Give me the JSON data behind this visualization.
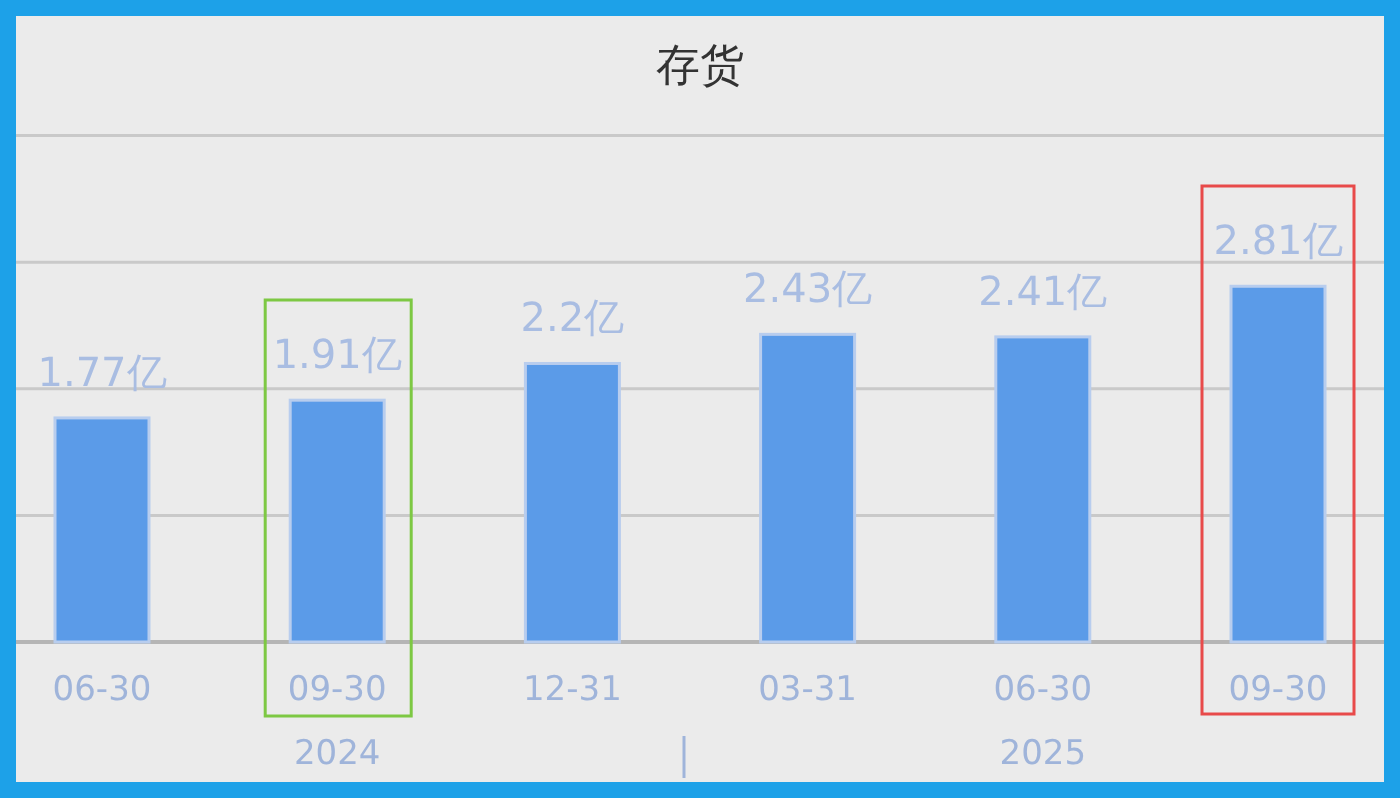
{
  "chart_data": {
    "type": "bar",
    "title": "存货",
    "categories": [
      "06-30",
      "09-30",
      "12-31",
      "03-31",
      "06-30",
      "09-30"
    ],
    "values": [
      1.77,
      1.91,
      2.2,
      2.43,
      2.41,
      2.81
    ],
    "value_labels": [
      "1.77亿",
      "1.91亿",
      "2.2亿",
      "2.43亿",
      "2.41亿",
      "2.81亿"
    ],
    "color": "#5b9be8",
    "ylim": [
      0,
      4
    ],
    "yticks": [
      {
        "value": 1,
        "label": null
      },
      {
        "value": 2,
        "label": null
      },
      {
        "value": 3,
        "label": null
      },
      {
        "value": 4,
        "label": null
      }
    ],
    "grid": "y",
    "annotations": [
      "2024",
      "2025"
    ]
  }
}
